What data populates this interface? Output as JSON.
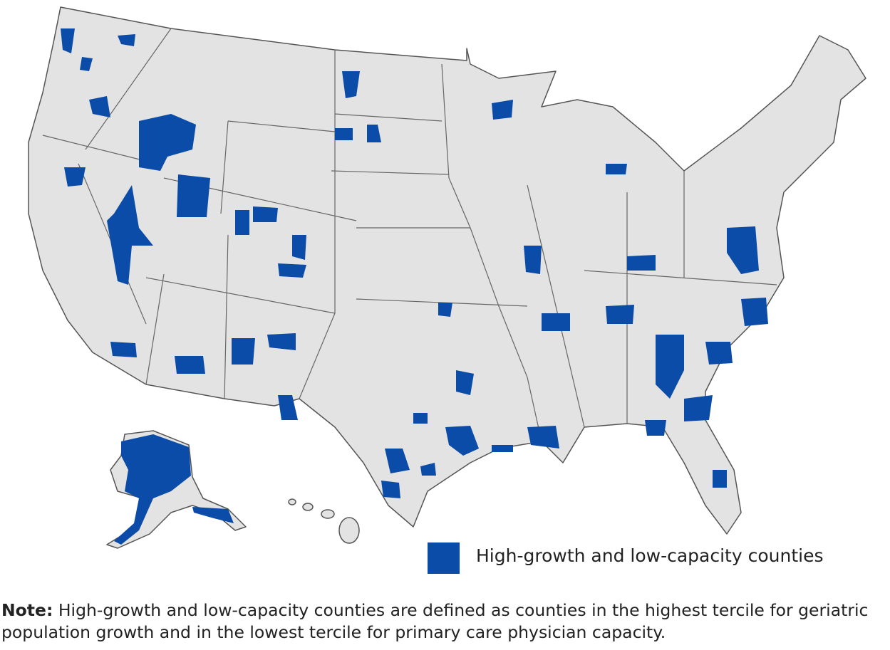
{
  "legend": {
    "label": "High-growth and low-capacity counties"
  },
  "note": {
    "label": "Note:",
    "text": "High-growth and low-capacity counties are defined as counties in the highest tercile for geriatric population growth and in the lowest tercile for primary care physician capacity."
  }
}
